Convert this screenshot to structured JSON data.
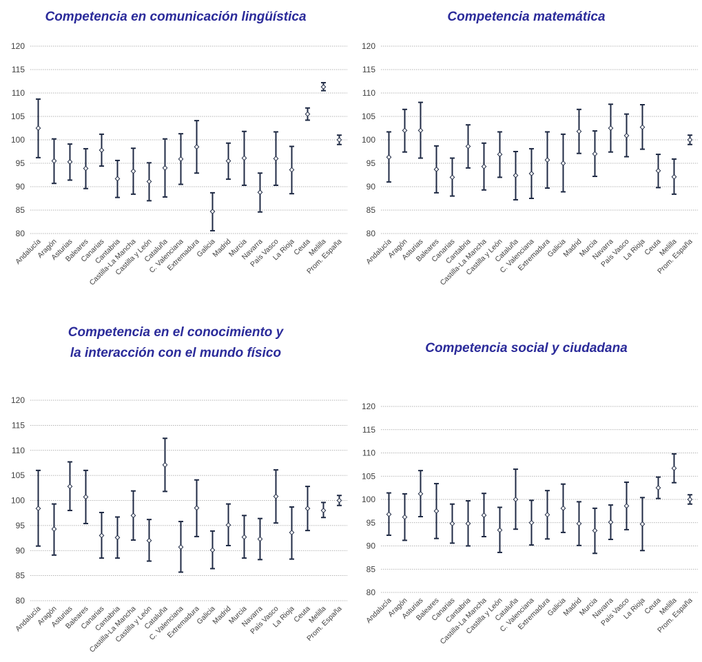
{
  "colors": {
    "title": "#2B2B9A",
    "series": "#1F2A44",
    "grid": "#9A9A9A",
    "axis_text": "#404040",
    "marker_fill": "#FFFFFF"
  },
  "chart_data": [
    {
      "type": "errorbar",
      "title": "Competencia en comunicación lingüística",
      "title_lines": [
        "Competencia en comunicación lingüística"
      ],
      "ylim": [
        80,
        120
      ],
      "yticks": [
        80,
        85,
        90,
        95,
        100,
        105,
        110,
        115,
        120
      ],
      "grid": true,
      "categories": [
        "Andalucía",
        "Aragón",
        "Asturias",
        "Baleares",
        "Canarias",
        "Cantabria",
        "Castilla-La Mancha",
        "Castilla y León",
        "Cataluña",
        "C. Valenciana",
        "Extremadura",
        "Galicia",
        "Madrid",
        "Murcia",
        "Navarra",
        "País Vasco",
        "La Rioja",
        "Ceuta",
        "Melilla",
        "Prom. España"
      ],
      "values": [
        102.5,
        95.5,
        95.3,
        93.9,
        97.8,
        91.7,
        93.3,
        91.1,
        94.0,
        95.9,
        98.5,
        84.7,
        95.5,
        96.1,
        88.8,
        96.0,
        93.6,
        105.5,
        111.3,
        100.0
      ],
      "low": [
        96.2,
        90.7,
        91.4,
        89.6,
        94.4,
        87.7,
        88.4,
        87.0,
        87.8,
        90.5,
        92.9,
        80.6,
        91.6,
        90.3,
        84.6,
        90.3,
        88.5,
        104.2,
        110.5,
        99.0
      ],
      "high": [
        108.7,
        100.2,
        99.1,
        98.1,
        101.2,
        95.6,
        98.2,
        95.1,
        100.2,
        101.3,
        104.1,
        88.7,
        99.3,
        101.8,
        92.9,
        101.7,
        98.6,
        106.8,
        112.2,
        101.0
      ]
    },
    {
      "type": "errorbar",
      "title": "Competencia matemática",
      "title_lines": [
        "Competencia matemática"
      ],
      "ylim": [
        80,
        120
      ],
      "yticks": [
        80,
        85,
        90,
        95,
        100,
        105,
        110,
        115,
        120
      ],
      "grid": true,
      "categories": [
        "Andalucía",
        "Aragón",
        "Asturias",
        "Baleares",
        "Canarias",
        "Cantabria",
        "Castilla-La Mancha",
        "Castilla y León",
        "Cataluña",
        "C. Valenciana",
        "Extremadura",
        "Galicia",
        "Madrid",
        "Murcia",
        "Navarra",
        "País Vasco",
        "La Rioja",
        "Ceuta",
        "Melilla",
        "Prom. España"
      ],
      "values": [
        96.3,
        102.0,
        102.0,
        93.7,
        92.0,
        98.6,
        94.3,
        96.9,
        92.4,
        92.8,
        95.7,
        95.0,
        101.8,
        97.0,
        102.5,
        100.9,
        102.7,
        93.4,
        92.1,
        100.0
      ],
      "low": [
        91.0,
        97.4,
        96.1,
        88.7,
        88.0,
        94.0,
        89.3,
        92.0,
        87.2,
        87.5,
        89.7,
        88.9,
        97.1,
        92.2,
        97.4,
        96.4,
        98.0,
        89.8,
        88.4,
        99.0
      ],
      "high": [
        101.7,
        106.5,
        108.0,
        98.7,
        96.1,
        103.2,
        99.3,
        101.7,
        97.5,
        98.1,
        101.7,
        101.2,
        106.5,
        101.9,
        107.6,
        105.5,
        107.5,
        96.9,
        95.9,
        101.0
      ]
    },
    {
      "type": "errorbar",
      "title": "Competencia en el conocimiento y la interacción con el mundo físico",
      "title_lines": [
        "Competencia en el conocimiento y",
        "la interacción con el mundo físico"
      ],
      "ylim": [
        80,
        120
      ],
      "yticks": [
        80,
        85,
        90,
        95,
        100,
        105,
        110,
        115,
        120
      ],
      "grid": true,
      "categories": [
        "Andalucía",
        "Aragón",
        "Asturias",
        "Baleares",
        "Canarias",
        "Cantabria",
        "Castilla-La Mancha",
        "Castilla y León",
        "Cataluña",
        "C. Valenciana",
        "Extremadura",
        "Galicia",
        "Madrid",
        "Murcia",
        "Navarra",
        "País Vasco",
        "La Rioja",
        "Ceuta",
        "Melilla",
        "Prom. España"
      ],
      "values": [
        98.4,
        94.3,
        102.8,
        100.7,
        93.0,
        92.6,
        97.0,
        92.0,
        107.1,
        90.7,
        98.5,
        90.1,
        95.1,
        92.7,
        92.3,
        100.8,
        93.6,
        98.4,
        98.0,
        100.0
      ],
      "low": [
        90.9,
        89.1,
        98.0,
        95.4,
        88.5,
        88.5,
        92.1,
        87.9,
        101.8,
        85.7,
        92.8,
        86.4,
        91.0,
        88.5,
        88.2,
        95.5,
        88.3,
        94.0,
        96.6,
        99.0
      ],
      "high": [
        106.0,
        99.3,
        107.7,
        106.0,
        97.6,
        96.7,
        101.9,
        96.2,
        112.4,
        95.8,
        104.1,
        93.9,
        99.3,
        97.0,
        96.4,
        106.1,
        98.7,
        102.8,
        99.6,
        101.0
      ]
    },
    {
      "type": "errorbar",
      "title": "Competencia social y ciudadana",
      "title_lines": [
        "Competencia social y ciudadana"
      ],
      "ylim": [
        80,
        120
      ],
      "yticks": [
        80,
        85,
        90,
        95,
        100,
        105,
        110,
        115,
        120
      ],
      "grid": true,
      "categories": [
        "Andalucía",
        "Aragón",
        "Asturias",
        "Baleares",
        "Canarias",
        "Cantabria",
        "Castilla-La Mancha",
        "Castilla y León",
        "Cataluña",
        "C. Valenciana",
        "Extremadura",
        "Galicia",
        "Madrid",
        "Murcia",
        "Navarra",
        "País Vasco",
        "La Rioja",
        "Ceuta",
        "Melilla",
        "Prom. España"
      ],
      "values": [
        96.8,
        96.2,
        101.2,
        97.5,
        94.8,
        94.8,
        96.6,
        93.4,
        100.0,
        95.0,
        96.7,
        98.1,
        94.8,
        93.3,
        95.1,
        98.6,
        94.7,
        102.5,
        106.7,
        100.0
      ],
      "low": [
        92.3,
        91.2,
        96.3,
        91.6,
        90.6,
        90.0,
        92.0,
        88.6,
        93.6,
        90.2,
        91.5,
        92.9,
        90.1,
        88.4,
        91.4,
        93.5,
        89.0,
        100.2,
        103.6,
        99.0
      ],
      "high": [
        101.4,
        101.2,
        106.2,
        103.4,
        99.0,
        99.7,
        101.3,
        98.3,
        106.5,
        99.8,
        101.9,
        103.3,
        99.5,
        98.1,
        98.8,
        103.7,
        100.4,
        104.8,
        109.8,
        101.0
      ]
    }
  ]
}
